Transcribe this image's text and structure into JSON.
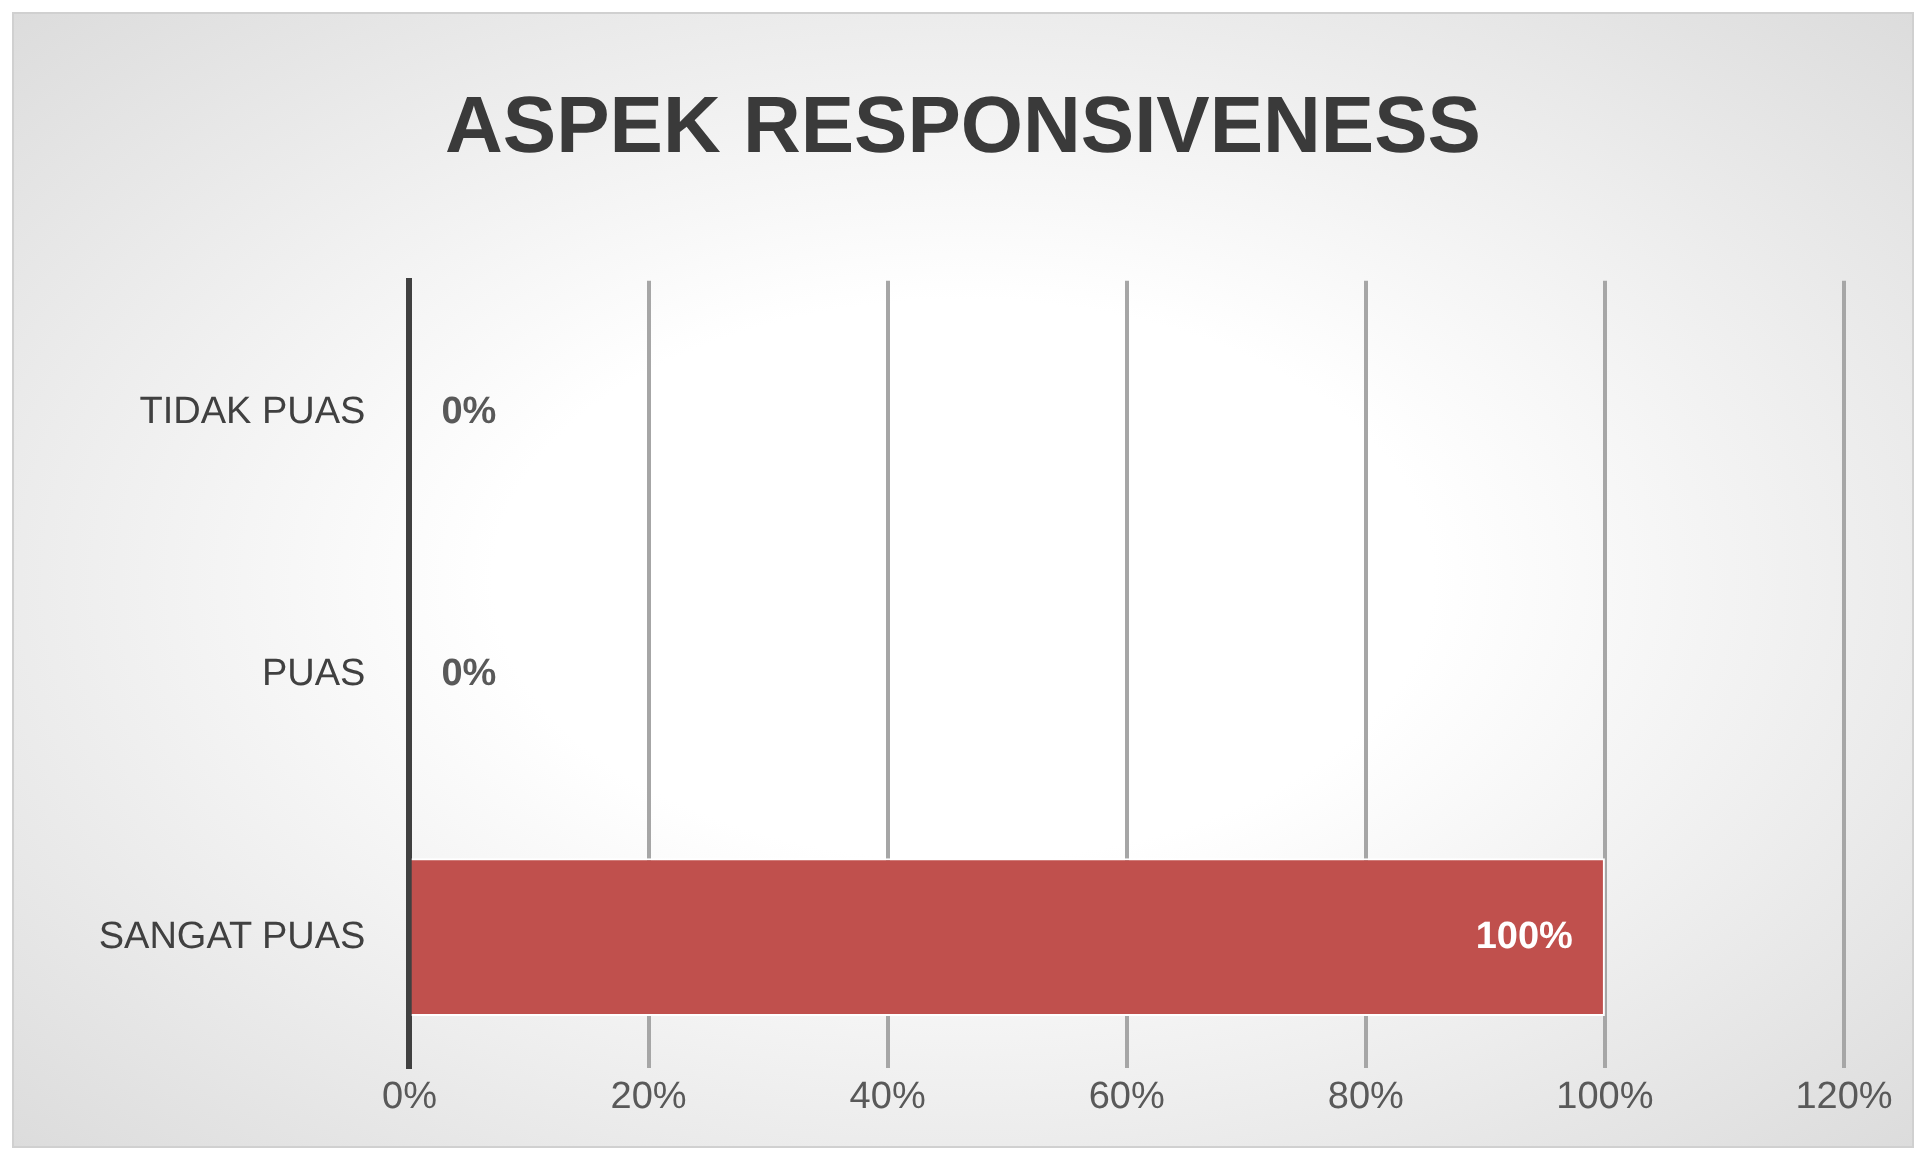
{
  "chart_data": {
    "type": "bar",
    "orientation": "horizontal",
    "title": "ASPEK RESPONSIVENESS",
    "categories": [
      "TIDAK PUAS",
      "PUAS",
      "SANGAT PUAS"
    ],
    "values": [
      0,
      0,
      100
    ],
    "color": "#c0504d",
    "value_labels": [
      "0%",
      "0%",
      "100%"
    ],
    "xlim": [
      0,
      120
    ],
    "xticks": [
      {
        "value": 0,
        "label": "0%"
      },
      {
        "value": 20,
        "label": "20%"
      },
      {
        "value": 40,
        "label": "40%"
      },
      {
        "value": 60,
        "label": "60%"
      },
      {
        "value": 80,
        "label": "80%"
      },
      {
        "value": 100,
        "label": "100%"
      },
      {
        "value": 120,
        "label": "120%"
      }
    ],
    "grid": "x",
    "legend": false
  }
}
